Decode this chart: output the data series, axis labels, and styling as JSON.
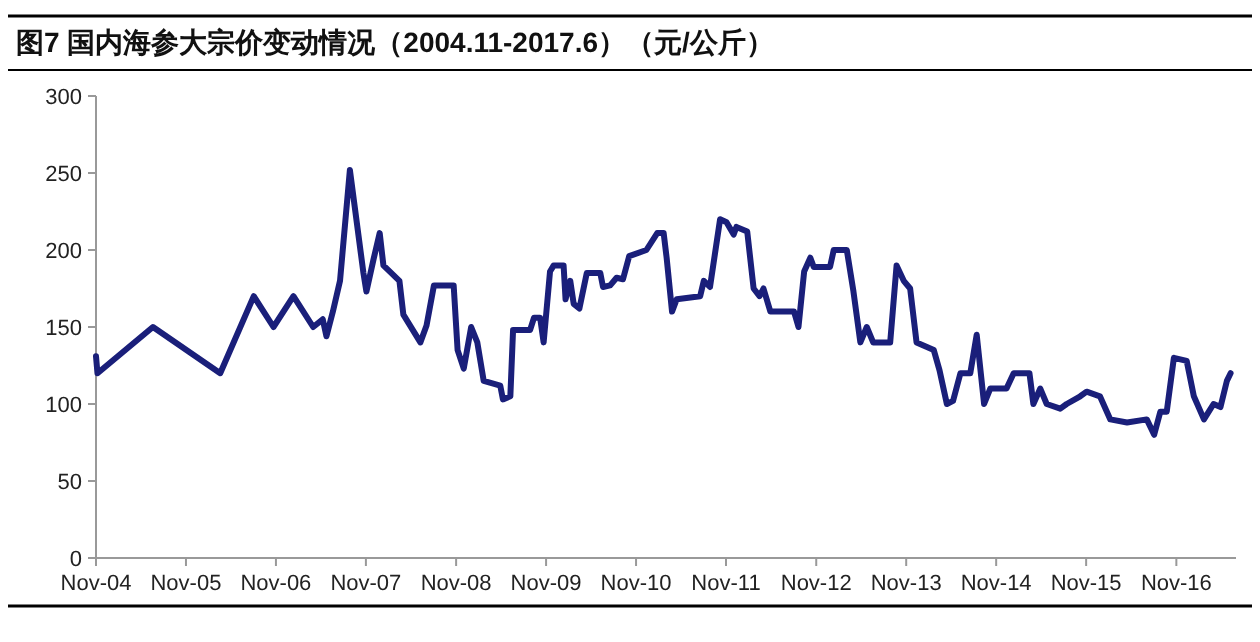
{
  "chart_data": {
    "type": "line",
    "title": "图7  国内海参大宗价变动情况（2004.11-2017.6）（元/公斤）",
    "x": [
      "2004-11-01",
      "2004-11-07",
      "2005-06-20",
      "2006-03-20",
      "2006-08-03",
      "2006-10-22",
      "2007-01-11",
      "2007-04-01",
      "2007-05-10",
      "2007-05-25",
      "2007-06-20",
      "2007-07-19",
      "2007-08-28",
      "2007-10-22",
      "2007-11-03",
      "2007-12-02",
      "2007-12-27",
      "2008-01-11",
      "2008-03-16",
      "2008-04-01",
      "2008-06-09",
      "2008-07-04",
      "2008-08-03",
      "2008-10-22",
      "2008-11-07",
      "2008-12-02",
      "2009-01-01",
      "2009-01-26",
      "2009-02-21",
      "2009-04-29",
      "2009-05-10",
      "2009-06-09",
      "2009-06-20",
      "2009-08-28",
      "2009-09-13",
      "2009-10-08",
      "2009-10-22",
      "2009-11-17",
      "2009-12-02",
      "2010-01-11",
      "2010-01-19",
      "2010-02-07",
      "2010-02-21",
      "2010-03-16",
      "2010-04-15",
      "2010-06-09",
      "2010-06-20",
      "2010-07-19",
      "2010-08-14",
      "2010-09-09",
      "2010-10-04",
      "2010-12-13",
      "2011-01-26",
      "2011-02-21",
      "2011-03-05",
      "2011-03-27",
      "2011-04-15",
      "2011-07-19",
      "2011-08-03",
      "2011-08-28",
      "2011-10-08",
      "2011-11-03",
      "2011-12-02",
      "2011-12-13",
      "2012-01-26",
      "2012-02-21",
      "2012-03-16",
      "2012-04-01",
      "2012-04-29",
      "2012-08-03",
      "2012-08-21",
      "2012-09-13",
      "2012-10-08",
      "2012-10-22",
      "2012-12-27",
      "2013-01-11",
      "2013-03-05",
      "2013-04-01",
      "2013-04-29",
      "2013-05-25",
      "2013-06-20",
      "2013-08-28",
      "2013-09-23",
      "2013-10-22",
      "2013-11-17",
      "2013-12-13",
      "2014-02-21",
      "2014-03-16",
      "2014-04-15",
      "2014-05-10",
      "2014-06-09",
      "2014-07-19",
      "2014-08-14",
      "2014-09-13",
      "2014-10-08",
      "2014-12-13",
      "2015-01-11",
      "2015-03-16",
      "2015-04-01",
      "2015-04-29",
      "2015-05-25",
      "2015-07-19",
      "2015-08-14",
      "2015-10-08",
      "2015-11-03",
      "2015-12-27",
      "2016-02-07",
      "2016-04-15",
      "2016-07-04",
      "2016-08-03",
      "2016-08-28",
      "2016-09-23",
      "2016-10-22",
      "2016-12-13",
      "2017-01-11",
      "2017-02-21",
      "2017-04-01",
      "2017-04-29",
      "2017-05-25",
      "2017-06-09"
    ],
    "series": [
      {
        "color": "#1a1f7a",
        "values": [
          131,
          120,
          150,
          120,
          170,
          150,
          170,
          150,
          155,
          144,
          160,
          180,
          252,
          185,
          173,
          194,
          211,
          190,
          180,
          158,
          140,
          151,
          177,
          177,
          135,
          123,
          150,
          140,
          115,
          112,
          103,
          105,
          148,
          148,
          156,
          156,
          140,
          186,
          190,
          190,
          168,
          180,
          165,
          162,
          185,
          185,
          176,
          177,
          182,
          181,
          196,
          200,
          211,
          211,
          195,
          160,
          168,
          170,
          180,
          176,
          220,
          218,
          210,
          215,
          212,
          175,
          170,
          175,
          160,
          160,
          150,
          186,
          195,
          189,
          189,
          200,
          200,
          173,
          140,
          150,
          140,
          140,
          190,
          180,
          175,
          140,
          135,
          122,
          100,
          102,
          120,
          120,
          145,
          100,
          110,
          110,
          120,
          120,
          100,
          110,
          100,
          97,
          100,
          105,
          108,
          105,
          90,
          88,
          90,
          80,
          95,
          95,
          130,
          128,
          105,
          90,
          100,
          98,
          115,
          120
        ]
      }
    ],
    "xlim": [
      "2004-11-01",
      "2017-07-01"
    ],
    "xticks": [
      {
        "value": "2004-11-01",
        "label": "Nov-04"
      },
      {
        "value": "2005-11-01",
        "label": "Nov-05"
      },
      {
        "value": "2006-11-01",
        "label": "Nov-06"
      },
      {
        "value": "2007-11-01",
        "label": "Nov-07"
      },
      {
        "value": "2008-11-01",
        "label": "Nov-08"
      },
      {
        "value": "2009-11-01",
        "label": "Nov-09"
      },
      {
        "value": "2010-11-01",
        "label": "Nov-10"
      },
      {
        "value": "2011-11-01",
        "label": "Nov-11"
      },
      {
        "value": "2012-11-01",
        "label": "Nov-12"
      },
      {
        "value": "2013-11-01",
        "label": "Nov-13"
      },
      {
        "value": "2014-11-01",
        "label": "Nov-14"
      },
      {
        "value": "2015-11-01",
        "label": "Nov-15"
      },
      {
        "value": "2016-11-01",
        "label": "Nov-16"
      }
    ],
    "ylim": [
      0,
      300
    ],
    "yticks": [
      0,
      50,
      100,
      150,
      200,
      250,
      300
    ],
    "line_style": "solid"
  }
}
